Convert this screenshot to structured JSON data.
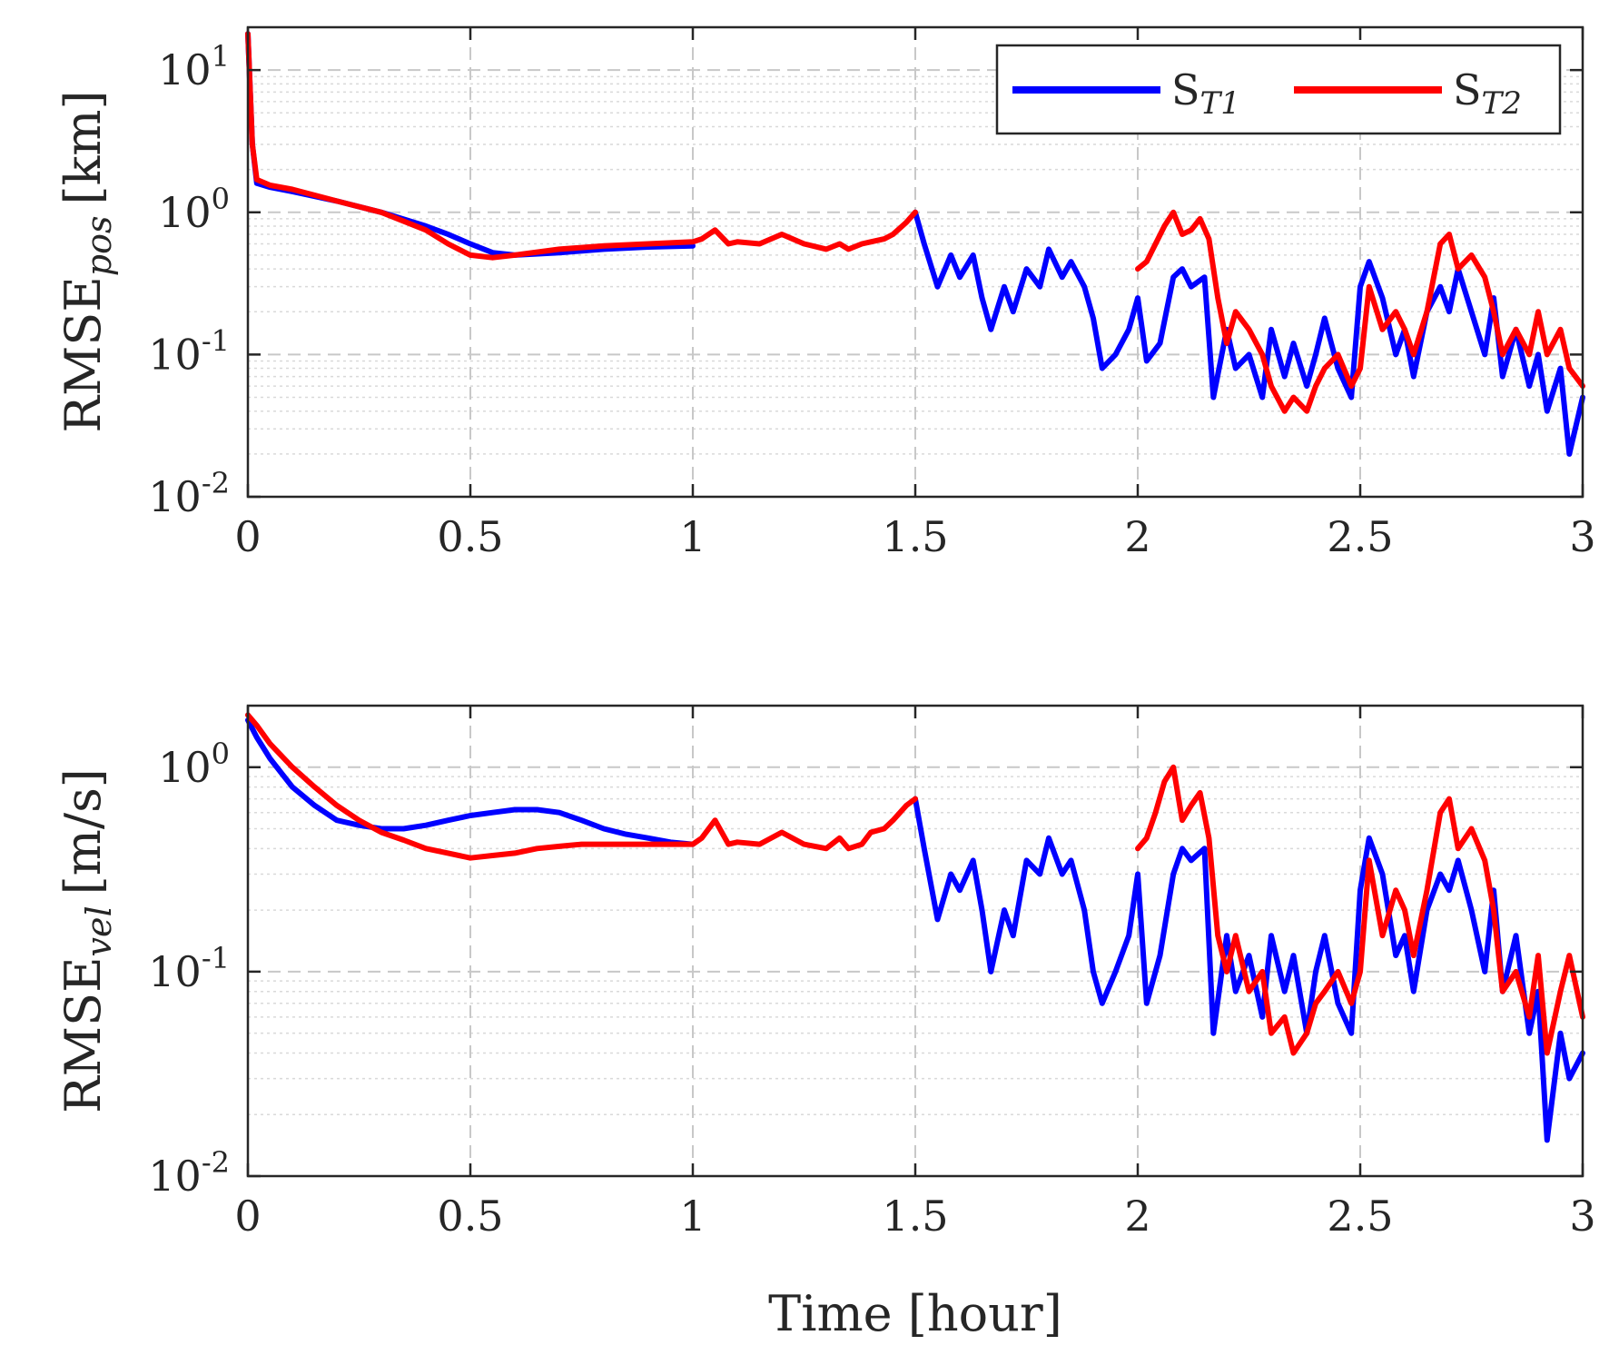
{
  "colors": {
    "s_t1": "#0000ff",
    "s_t2": "#ff0000",
    "axes": "#262626",
    "grid": "#d0d0d0"
  },
  "legend": {
    "items": [
      {
        "base": "S",
        "sub": "T1",
        "color": "#0000ff"
      },
      {
        "base": "S",
        "sub": "T2",
        "color": "#ff0000"
      }
    ]
  },
  "xaxis": {
    "label": "Time [hour]",
    "ticks": [
      "0",
      "0.5",
      "1",
      "1.5",
      "2",
      "2.5",
      "3"
    ]
  },
  "chart_data": [
    {
      "type": "line",
      "panel": "top",
      "yscale": "log",
      "ylabel": {
        "base": "RMSE",
        "sub": "pos",
        "unit": "[km]"
      },
      "xlabel": "",
      "xlim": [
        0,
        3
      ],
      "ylim": [
        0.01,
        20
      ],
      "grid": true,
      "legend_position": "top-right",
      "yticks": [
        {
          "value": 0.01,
          "base": "10",
          "exp": "-2"
        },
        {
          "value": 0.1,
          "base": "10",
          "exp": "-1"
        },
        {
          "value": 1,
          "base": "10",
          "exp": "0"
        },
        {
          "value": 10,
          "base": "10",
          "exp": "1"
        }
      ],
      "series": [
        {
          "name": "S_T1",
          "x": [
            0,
            0.01,
            0.02,
            0.05,
            0.1,
            0.2,
            0.3,
            0.4,
            0.45,
            0.5,
            0.55,
            0.6,
            0.7,
            0.8,
            0.9,
            1.0
          ],
          "y": [
            18,
            3.0,
            1.6,
            1.5,
            1.4,
            1.2,
            1.0,
            0.8,
            0.7,
            0.6,
            0.52,
            0.5,
            0.52,
            0.55,
            0.57,
            0.58
          ]
        },
        {
          "name": "S_T1",
          "x": [
            1.5,
            1.52,
            1.55,
            1.58,
            1.6,
            1.63,
            1.65,
            1.67,
            1.7,
            1.72,
            1.75,
            1.78,
            1.8,
            1.83,
            1.85,
            1.88,
            1.9,
            1.92,
            1.95,
            1.98,
            2.0,
            2.02,
            2.05,
            2.08,
            2.1,
            2.12,
            2.15,
            2.17,
            2.2,
            2.22,
            2.25,
            2.28,
            2.3,
            2.33,
            2.35,
            2.38,
            2.4,
            2.42,
            2.45,
            2.48,
            2.5,
            2.52,
            2.55,
            2.58,
            2.6,
            2.62,
            2.65,
            2.68,
            2.7,
            2.72,
            2.75,
            2.78,
            2.8,
            2.82,
            2.85,
            2.88,
            2.9,
            2.92,
            2.95,
            2.97,
            3.0
          ],
          "y": [
            1.0,
            0.6,
            0.3,
            0.5,
            0.35,
            0.5,
            0.25,
            0.15,
            0.3,
            0.2,
            0.4,
            0.3,
            0.55,
            0.35,
            0.45,
            0.3,
            0.18,
            0.08,
            0.1,
            0.15,
            0.25,
            0.09,
            0.12,
            0.35,
            0.4,
            0.3,
            0.35,
            0.05,
            0.15,
            0.08,
            0.1,
            0.05,
            0.15,
            0.07,
            0.12,
            0.06,
            0.1,
            0.18,
            0.08,
            0.05,
            0.3,
            0.45,
            0.25,
            0.1,
            0.15,
            0.07,
            0.2,
            0.3,
            0.2,
            0.4,
            0.2,
            0.1,
            0.25,
            0.07,
            0.15,
            0.06,
            0.1,
            0.04,
            0.08,
            0.02,
            0.05
          ]
        },
        {
          "name": "S_T2",
          "x": [
            0,
            0.01,
            0.02,
            0.05,
            0.1,
            0.2,
            0.3,
            0.4,
            0.45,
            0.5,
            0.55,
            0.6,
            0.7,
            0.8,
            0.9,
            1.0,
            1.02,
            1.05,
            1.08,
            1.1,
            1.15,
            1.2,
            1.25,
            1.3,
            1.33,
            1.35,
            1.38,
            1.4,
            1.43,
            1.45,
            1.48,
            1.5
          ],
          "y": [
            18,
            3.0,
            1.7,
            1.55,
            1.45,
            1.2,
            1.0,
            0.75,
            0.6,
            0.5,
            0.48,
            0.5,
            0.55,
            0.58,
            0.6,
            0.62,
            0.65,
            0.75,
            0.6,
            0.62,
            0.6,
            0.7,
            0.6,
            0.55,
            0.6,
            0.55,
            0.6,
            0.62,
            0.65,
            0.7,
            0.85,
            1.0
          ]
        },
        {
          "name": "S_T2",
          "x": [
            2.0,
            2.02,
            2.04,
            2.06,
            2.08,
            2.1,
            2.12,
            2.14,
            2.16,
            2.18,
            2.2,
            2.22,
            2.25,
            2.28,
            2.3,
            2.33,
            2.35,
            2.38,
            2.4,
            2.42,
            2.45,
            2.48,
            2.5,
            2.52,
            2.55,
            2.58,
            2.6,
            2.62,
            2.65,
            2.68,
            2.7,
            2.72,
            2.75,
            2.78,
            2.8,
            2.82,
            2.85,
            2.88,
            2.9,
            2.92,
            2.95,
            2.97,
            3.0
          ],
          "y": [
            0.4,
            0.45,
            0.6,
            0.8,
            1.0,
            0.7,
            0.75,
            0.9,
            0.65,
            0.25,
            0.12,
            0.2,
            0.15,
            0.1,
            0.06,
            0.04,
            0.05,
            0.04,
            0.06,
            0.08,
            0.1,
            0.06,
            0.08,
            0.3,
            0.15,
            0.2,
            0.15,
            0.1,
            0.2,
            0.6,
            0.7,
            0.4,
            0.5,
            0.35,
            0.2,
            0.1,
            0.15,
            0.1,
            0.2,
            0.1,
            0.15,
            0.08,
            0.06
          ]
        }
      ]
    },
    {
      "type": "line",
      "panel": "bottom",
      "yscale": "log",
      "ylabel": {
        "base": "RMSE",
        "sub": "vel",
        "unit": "[m/s]"
      },
      "xlabel": "Time [hour]",
      "xlim": [
        0,
        3
      ],
      "ylim": [
        0.01,
        2
      ],
      "grid": true,
      "yticks": [
        {
          "value": 0.01,
          "base": "10",
          "exp": "-2"
        },
        {
          "value": 0.1,
          "base": "10",
          "exp": "-1"
        },
        {
          "value": 1,
          "base": "10",
          "exp": "0"
        }
      ],
      "series": [
        {
          "name": "S_T1",
          "x": [
            0,
            0.02,
            0.05,
            0.1,
            0.15,
            0.2,
            0.25,
            0.3,
            0.35,
            0.4,
            0.45,
            0.5,
            0.55,
            0.6,
            0.65,
            0.7,
            0.75,
            0.8,
            0.85,
            0.9,
            0.95,
            1.0
          ],
          "y": [
            1.7,
            1.4,
            1.1,
            0.8,
            0.65,
            0.55,
            0.52,
            0.5,
            0.5,
            0.52,
            0.55,
            0.58,
            0.6,
            0.62,
            0.62,
            0.6,
            0.55,
            0.5,
            0.47,
            0.45,
            0.43,
            0.42
          ]
        },
        {
          "name": "S_T1",
          "x": [
            1.5,
            1.52,
            1.55,
            1.58,
            1.6,
            1.63,
            1.65,
            1.67,
            1.7,
            1.72,
            1.75,
            1.78,
            1.8,
            1.83,
            1.85,
            1.88,
            1.9,
            1.92,
            1.95,
            1.98,
            2.0,
            2.02,
            2.05,
            2.08,
            2.1,
            2.12,
            2.15,
            2.17,
            2.2,
            2.22,
            2.25,
            2.28,
            2.3,
            2.33,
            2.35,
            2.38,
            2.4,
            2.42,
            2.45,
            2.48,
            2.5,
            2.52,
            2.55,
            2.58,
            2.6,
            2.62,
            2.65,
            2.68,
            2.7,
            2.72,
            2.75,
            2.78,
            2.8,
            2.82,
            2.85,
            2.88,
            2.9,
            2.92,
            2.95,
            2.97,
            3.0
          ],
          "y": [
            0.7,
            0.4,
            0.18,
            0.3,
            0.25,
            0.35,
            0.2,
            0.1,
            0.2,
            0.15,
            0.35,
            0.3,
            0.45,
            0.3,
            0.35,
            0.2,
            0.1,
            0.07,
            0.1,
            0.15,
            0.3,
            0.07,
            0.12,
            0.3,
            0.4,
            0.35,
            0.4,
            0.05,
            0.15,
            0.08,
            0.12,
            0.06,
            0.15,
            0.08,
            0.12,
            0.05,
            0.1,
            0.15,
            0.07,
            0.05,
            0.25,
            0.45,
            0.3,
            0.12,
            0.15,
            0.08,
            0.2,
            0.3,
            0.25,
            0.35,
            0.2,
            0.1,
            0.25,
            0.08,
            0.15,
            0.05,
            0.08,
            0.015,
            0.05,
            0.03,
            0.04
          ]
        },
        {
          "name": "S_T2",
          "x": [
            0,
            0.02,
            0.05,
            0.1,
            0.15,
            0.2,
            0.25,
            0.3,
            0.35,
            0.4,
            0.45,
            0.5,
            0.55,
            0.6,
            0.65,
            0.7,
            0.75,
            0.8,
            0.85,
            0.9,
            0.95,
            1.0,
            1.02,
            1.05,
            1.08,
            1.1,
            1.15,
            1.2,
            1.25,
            1.3,
            1.33,
            1.35,
            1.38,
            1.4,
            1.43,
            1.45,
            1.48,
            1.5
          ],
          "y": [
            1.8,
            1.6,
            1.3,
            1.0,
            0.8,
            0.65,
            0.55,
            0.48,
            0.44,
            0.4,
            0.38,
            0.36,
            0.37,
            0.38,
            0.4,
            0.41,
            0.42,
            0.42,
            0.42,
            0.42,
            0.42,
            0.42,
            0.45,
            0.55,
            0.42,
            0.43,
            0.42,
            0.48,
            0.42,
            0.4,
            0.45,
            0.4,
            0.42,
            0.48,
            0.5,
            0.55,
            0.65,
            0.7
          ]
        },
        {
          "name": "S_T2",
          "x": [
            2.0,
            2.02,
            2.04,
            2.06,
            2.08,
            2.1,
            2.12,
            2.14,
            2.16,
            2.18,
            2.2,
            2.22,
            2.25,
            2.28,
            2.3,
            2.33,
            2.35,
            2.38,
            2.4,
            2.42,
            2.45,
            2.48,
            2.5,
            2.52,
            2.55,
            2.58,
            2.6,
            2.62,
            2.65,
            2.68,
            2.7,
            2.72,
            2.75,
            2.78,
            2.8,
            2.82,
            2.85,
            2.88,
            2.9,
            2.92,
            2.95,
            2.97,
            3.0
          ],
          "y": [
            0.4,
            0.45,
            0.6,
            0.85,
            1.0,
            0.55,
            0.65,
            0.75,
            0.45,
            0.15,
            0.1,
            0.15,
            0.08,
            0.1,
            0.05,
            0.06,
            0.04,
            0.05,
            0.07,
            0.08,
            0.1,
            0.07,
            0.1,
            0.35,
            0.15,
            0.25,
            0.2,
            0.12,
            0.25,
            0.6,
            0.7,
            0.4,
            0.5,
            0.35,
            0.2,
            0.08,
            0.1,
            0.06,
            0.12,
            0.04,
            0.08,
            0.12,
            0.06
          ]
        }
      ]
    }
  ]
}
